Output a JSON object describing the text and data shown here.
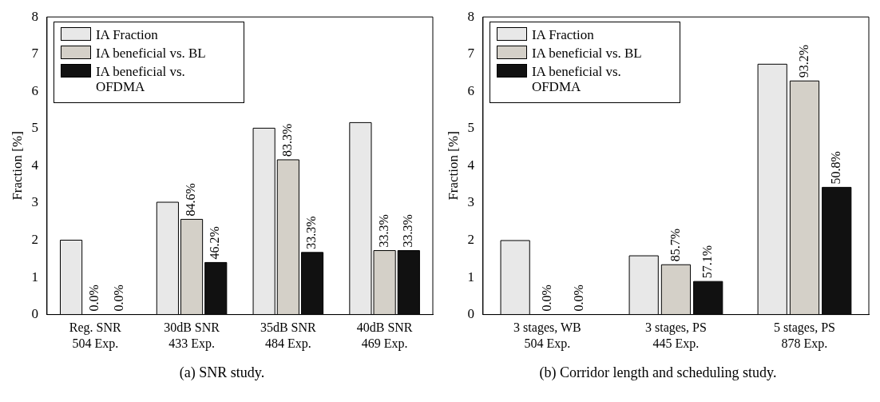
{
  "chart_data": [
    {
      "type": "bar",
      "ylabel": "Fraction [%]",
      "categories": [
        "Reg. SNR\n504 Exp.",
        "30dB SNR\n433 Exp.",
        "35dB SNR\n484 Exp.",
        "40dB SNR\n469 Exp."
      ],
      "ylim": [
        0,
        8
      ],
      "yticks": [
        0,
        1,
        2,
        3,
        4,
        5,
        6,
        7,
        8
      ],
      "grid": false,
      "legend": "top left",
      "annotations": [
        {
          "text": "0.0%",
          "x": "Reg. SNR\n504 Exp.",
          "y": 0
        },
        {
          "text": "0.0%",
          "x": "Reg. SNR\n504 Exp.",
          "y": 0
        },
        {
          "text": "84.6%",
          "x": "30dB SNR\n433 Exp.",
          "y": 2.56
        },
        {
          "text": "46.2%",
          "y": 1.4
        },
        {
          "text": "83.3%",
          "x": "35dB SNR\n484 Exp.",
          "y": 4.16
        },
        {
          "text": "33.3%",
          "y": 1.67
        },
        {
          "text": "33.3%",
          "x": "40dB SNR\n469 Exp.",
          "y": 1.72
        },
        {
          "text": "33.3%",
          "x": "40dB SNR\n469 Exp.",
          "y": 1.72
        },
        "(a) SNR study."
      ],
      "series": [
        {
          "name": "IA Fraction",
          "color": "#e8e8e8",
          "values": [
            2.0,
            3.02,
            5.01,
            5.16
          ]
        },
        {
          "name": "IA beneficial vs. BL",
          "color": "#d4d0c8",
          "values": [
            0,
            2.56,
            4.16,
            1.72
          ]
        },
        {
          "name": "IA beneficial vs. OFDMA",
          "color": "#111111",
          "values": [
            0,
            1.4,
            1.67,
            1.72
          ]
        }
      ]
    },
    {
      "type": "bar",
      "ylabel": "Fraction [%]",
      "categories": [
        "3 stages, WB\n504 Exp.",
        "3 stages, PS\n445 Exp.",
        "5 stages, PS\n878 Exp."
      ],
      "ylim": [
        0,
        8
      ],
      "yticks": [
        0,
        1,
        2,
        3,
        4,
        5,
        6,
        7,
        8
      ],
      "grid": false,
      "legend": "top left",
      "annotations": [
        {
          "text": "0.0%",
          "x": "3 stages, WB\n504 Exp.",
          "y": 0
        },
        {
          "text": "0.0%",
          "x": "3 stages, WB\n504 Exp.",
          "y": 0
        },
        {
          "text": "85.7%",
          "x": "3 stages, PS\n445 Exp.",
          "y": 1.34
        },
        {
          "text": "57.1%",
          "y": 0.89
        },
        {
          "text": "93.2%",
          "x": "5 stages, PS\n878 Exp.",
          "y": 6.28
        },
        {
          "text": "50.8%",
          "y": 3.42
        },
        "(b) Corridor length and scheduling study."
      ],
      "series": [
        {
          "name": "IA Fraction",
          "color": "#e8e8e8",
          "values": [
            1.99,
            1.58,
            6.73
          ]
        },
        {
          "name": "IA beneficial vs. BL",
          "color": "#d4d0c8",
          "values": [
            0,
            1.34,
            6.28
          ]
        },
        {
          "name": "IA beneficial vs. OFDMA",
          "color": "#111111",
          "values": [
            0,
            0.89,
            3.42
          ]
        }
      ]
    }
  ]
}
